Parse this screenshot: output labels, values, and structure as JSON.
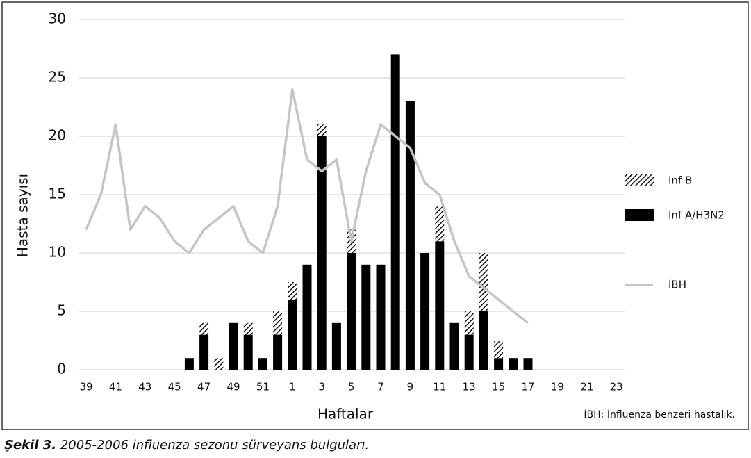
{
  "chart_data": {
    "type": "bar",
    "y_label": "Hasta sayısı",
    "x_label": "Haftalar",
    "annotation": "İBH: İnfluenza benzeri hastalık.",
    "caption_label": "Şekil 3.",
    "caption_text": "2005-2006 influenza sezonu sürveyans bulguları.",
    "categories": [
      "39",
      null,
      "41",
      null,
      "43",
      null,
      "45",
      null,
      "47",
      null,
      "49",
      null,
      "51",
      null,
      "1",
      null,
      "3",
      null,
      "5",
      null,
      "7",
      null,
      "9",
      null,
      "11",
      null,
      "13",
      null,
      "15",
      null,
      "17",
      null,
      "19",
      null,
      "21",
      null,
      "23"
    ],
    "series": [
      {
        "name": "Inf B",
        "color": "#111111",
        "pattern": "hatch",
        "stack": true,
        "values": [
          null,
          null,
          null,
          null,
          null,
          null,
          null,
          null,
          1,
          1,
          null,
          1,
          null,
          2,
          1.5,
          null,
          1,
          null,
          2,
          null,
          null,
          null,
          null,
          null,
          3,
          null,
          2,
          5,
          1.5,
          null,
          null,
          null,
          null,
          null,
          null,
          null,
          null
        ]
      },
      {
        "name": "Inf A/H3N2",
        "color": "#000000",
        "stack": true,
        "values": [
          null,
          null,
          null,
          null,
          null,
          null,
          null,
          1,
          3,
          null,
          4,
          3,
          1,
          3,
          6,
          9,
          20,
          4,
          10,
          9,
          9,
          27,
          23,
          10,
          11,
          4,
          3,
          5,
          1,
          1,
          1,
          null,
          null,
          null,
          null,
          null,
          null
        ]
      },
      {
        "name": "İBH",
        "color": "#c8c4c2",
        "kind": "line",
        "values": [
          12,
          15,
          21,
          12,
          14,
          13,
          11,
          10,
          12,
          13,
          14,
          11,
          10,
          14,
          24,
          18,
          17,
          18,
          11,
          17,
          21,
          20,
          19,
          16,
          15,
          11,
          8,
          7,
          6,
          5,
          4,
          null,
          null,
          null,
          null,
          null,
          null
        ]
      }
    ],
    "ylim": [
      0,
      30
    ],
    "yticks": [
      0,
      5,
      10,
      15,
      20,
      25,
      30
    ],
    "grid": true,
    "legend": "right"
  }
}
